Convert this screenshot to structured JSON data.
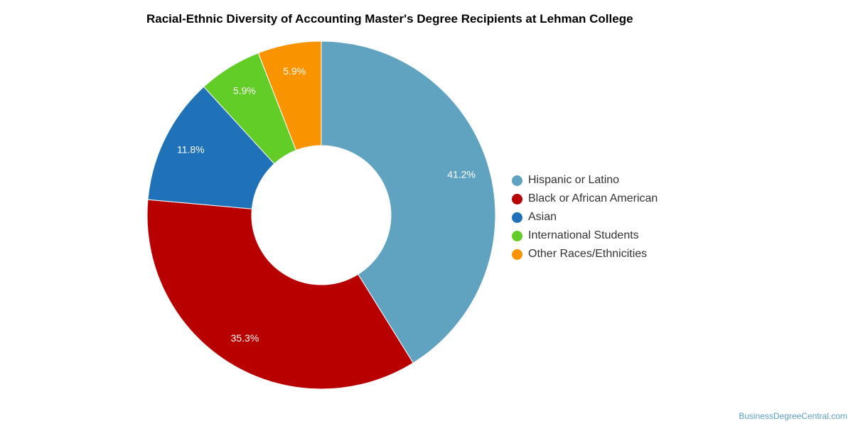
{
  "chart_data": {
    "type": "pie",
    "title": "Racial-Ethnic Diversity of Accounting Master's Degree Recipients at Lehman College",
    "categories": [
      "Hispanic or Latino",
      "Black or African American",
      "Asian",
      "International Students",
      "Other Races/Ethnicities"
    ],
    "values": [
      41.2,
      35.3,
      11.8,
      5.9,
      5.9
    ],
    "data_labels": [
      "41.2%",
      "35.3%",
      "11.8%",
      "5.9%",
      "5.9%"
    ],
    "colors": [
      "#5fa3c1",
      "#b80000",
      "#1f72b8",
      "#63cd28",
      "#f99400"
    ],
    "donut": true,
    "legend_position": "right"
  },
  "credit": "BusinessDegreeCentral.com"
}
